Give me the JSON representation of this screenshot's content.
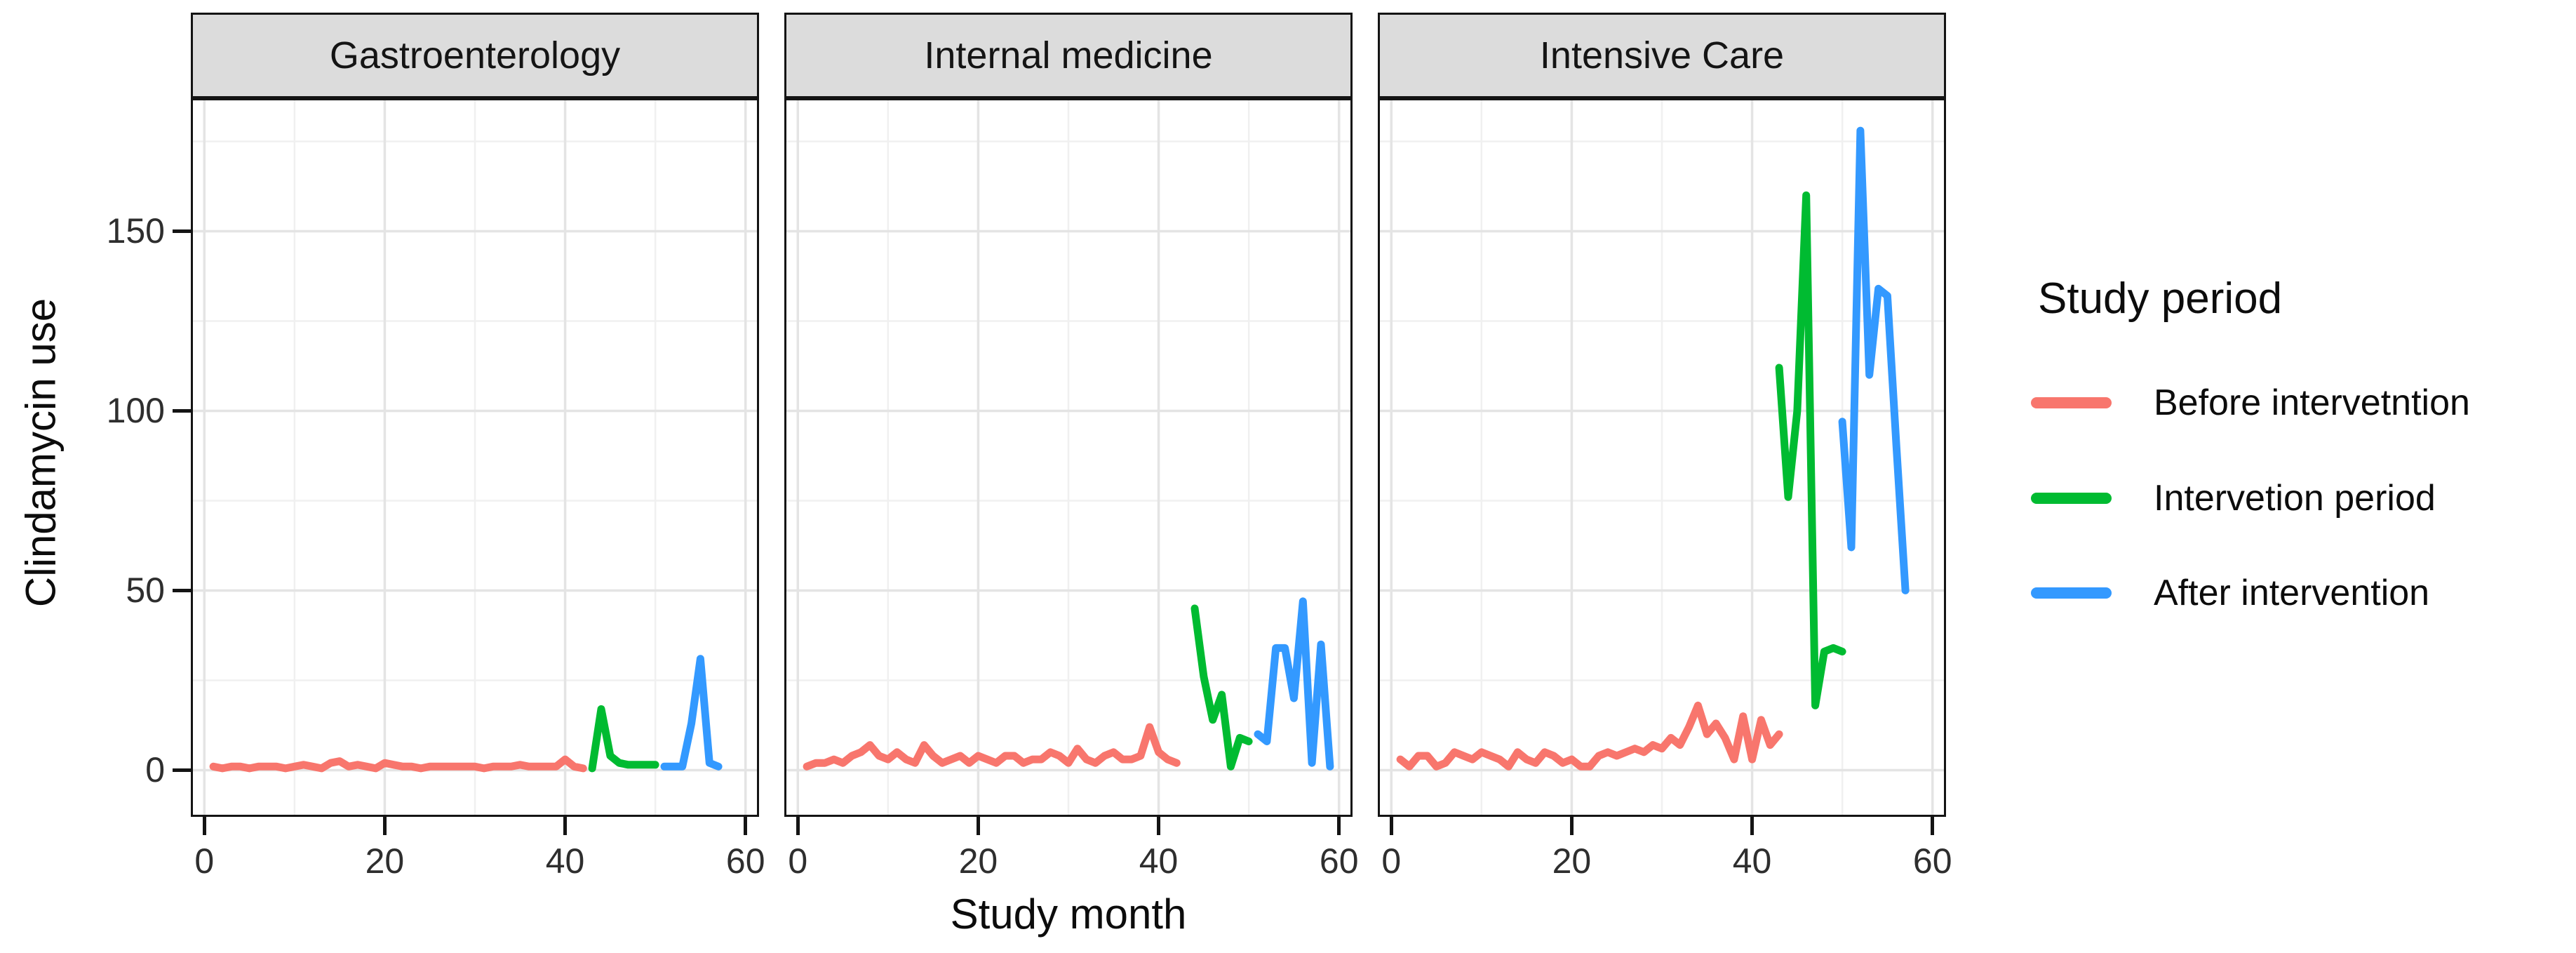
{
  "figure": {
    "y_axis_title": "Clindamycin use",
    "x_axis_title": "Study month"
  },
  "legend": {
    "title": "Study period",
    "items": [
      {
        "key": "before",
        "label": "Before intervetntion",
        "color": "#F8766D"
      },
      {
        "key": "intervention",
        "label": "Intervetion period",
        "color": "#00BB31"
      },
      {
        "key": "after",
        "label": "After intervention",
        "color": "#3399FF"
      }
    ]
  },
  "chart_data": {
    "type": "line",
    "title": "",
    "xlabel": "Study month",
    "ylabel": "Clindamycin use",
    "xlim": [
      -1.5,
      61.5
    ],
    "ylim": [
      -13,
      187
    ],
    "x_ticks": [
      0,
      20,
      40,
      60
    ],
    "y_ticks": [
      0,
      50,
      100,
      150
    ],
    "x_minor_gridlines": [
      10,
      30,
      50
    ],
    "y_minor_gridlines": [
      25,
      75,
      125,
      175
    ],
    "grid": true,
    "legend_position": "right",
    "facets": [
      {
        "name": "Gastroenterology",
        "series": [
          {
            "period": "before",
            "name": "Before intervetntion",
            "start_month": 1,
            "values": [
              1,
              0.5,
              1,
              1,
              0.5,
              1,
              1,
              1,
              0.5,
              1,
              1.5,
              1,
              0.5,
              2,
              2.5,
              1,
              1.5,
              1,
              0.5,
              2,
              1.5,
              1,
              1,
              0.5,
              1,
              1,
              1,
              1,
              1,
              1,
              0.5,
              1,
              1,
              1,
              1.5,
              1,
              1,
              1,
              1,
              3,
              1,
              0.5
            ]
          },
          {
            "period": "intervention",
            "name": "Intervetion period",
            "start_month": 43,
            "values": [
              0.5,
              17,
              4,
              2,
              1.5,
              1.5,
              1.5,
              1.5
            ]
          },
          {
            "period": "after",
            "name": "After intervention",
            "start_month": 51,
            "values": [
              1,
              1,
              1,
              13,
              31,
              2,
              1
            ]
          }
        ]
      },
      {
        "name": "Internal medicine",
        "series": [
          {
            "period": "before",
            "name": "Before intervetntion",
            "start_month": 1,
            "values": [
              1,
              2,
              2,
              3,
              2,
              4,
              5,
              7,
              4,
              3,
              5,
              3,
              2,
              7,
              4,
              2,
              3,
              4,
              2,
              4,
              3,
              2,
              4,
              4,
              2,
              3,
              3,
              5,
              4,
              2,
              6,
              3,
              2,
              4,
              5,
              3,
              3,
              4,
              12,
              5,
              3,
              2
            ]
          },
          {
            "period": "intervention",
            "name": "Intervetion period",
            "start_month": 44,
            "values": [
              45,
              26,
              14,
              21,
              1,
              9,
              8
            ]
          },
          {
            "period": "after",
            "name": "After intervention",
            "start_month": 51,
            "values": [
              10,
              8,
              34,
              34,
              20,
              47,
              2,
              35,
              1
            ]
          }
        ]
      },
      {
        "name": "Intensive Care",
        "series": [
          {
            "period": "before",
            "name": "Before intervetntion",
            "start_month": 1,
            "values": [
              3,
              1,
              4,
              4,
              1,
              2,
              5,
              4,
              3,
              5,
              4,
              3,
              1,
              5,
              3,
              2,
              5,
              4,
              2,
              3,
              1,
              1,
              4,
              5,
              4,
              5,
              6,
              5,
              7,
              6,
              9,
              7,
              12,
              18,
              10,
              13,
              9,
              3,
              15,
              3,
              14,
              7,
              10
            ]
          },
          {
            "period": "intervention",
            "name": "Intervetion period",
            "start_month": 43,
            "values": [
              112,
              76,
              100,
              160,
              18,
              33,
              34,
              33
            ]
          },
          {
            "period": "after",
            "name": "After intervention",
            "start_month": 50,
            "values": [
              97,
              62,
              178,
              110,
              134,
              132,
              90,
              50
            ]
          }
        ]
      }
    ]
  }
}
